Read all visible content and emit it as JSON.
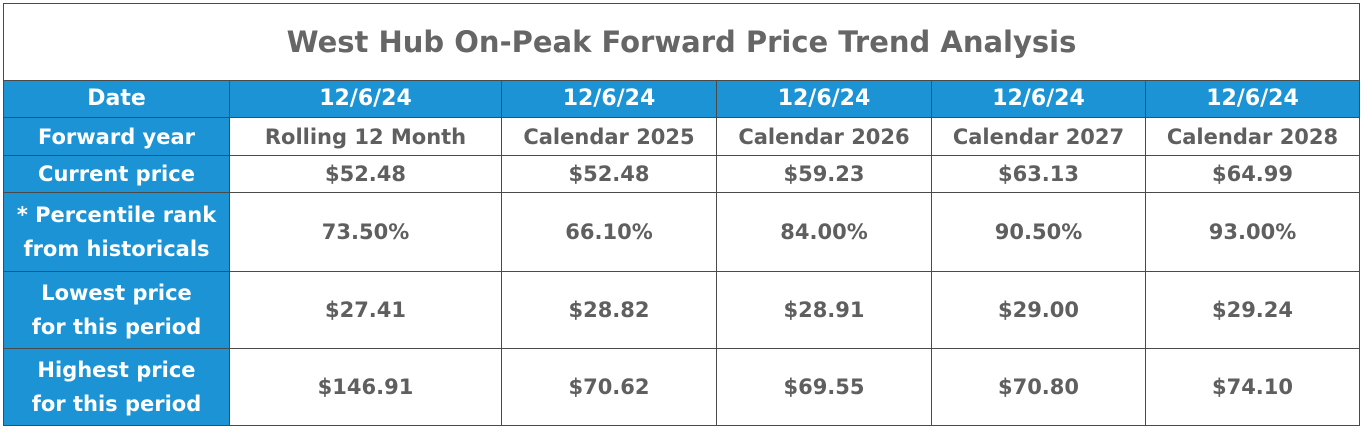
{
  "title": "West Hub On-Peak Forward Price Trend Analysis",
  "header": {
    "label": "Date",
    "columns": [
      "12/6/24",
      "12/6/24",
      "12/6/24",
      "12/6/24",
      "12/6/24"
    ]
  },
  "rows": [
    {
      "label_lines": [
        "Forward year"
      ],
      "values": [
        "Rolling 12 Month",
        "Calendar 2025",
        "Calendar 2026",
        "Calendar 2027",
        "Calendar 2028"
      ]
    },
    {
      "label_lines": [
        "Current price"
      ],
      "values": [
        "$52.48",
        "$52.48",
        "$59.23",
        "$63.13",
        "$64.99"
      ]
    },
    {
      "label_lines": [
        "* Percentile rank",
        "from historicals"
      ],
      "values": [
        "73.50%",
        "66.10%",
        "84.00%",
        "90.50%",
        "93.00%"
      ]
    },
    {
      "label_lines": [
        "Lowest price",
        "for this period"
      ],
      "values": [
        "$27.41",
        "$28.82",
        "$28.91",
        "$29.00",
        "$29.24"
      ]
    },
    {
      "label_lines": [
        "Highest price",
        "for this period"
      ],
      "values": [
        "$146.91",
        "$70.62",
        "$69.55",
        "$70.80",
        "$74.10"
      ]
    }
  ],
  "colors": {
    "header_blue": "#1b93d4",
    "header_text": "#ffffff",
    "body_text": "#5f5f5f",
    "title_text": "#666666",
    "border": "#4a4a4a"
  }
}
